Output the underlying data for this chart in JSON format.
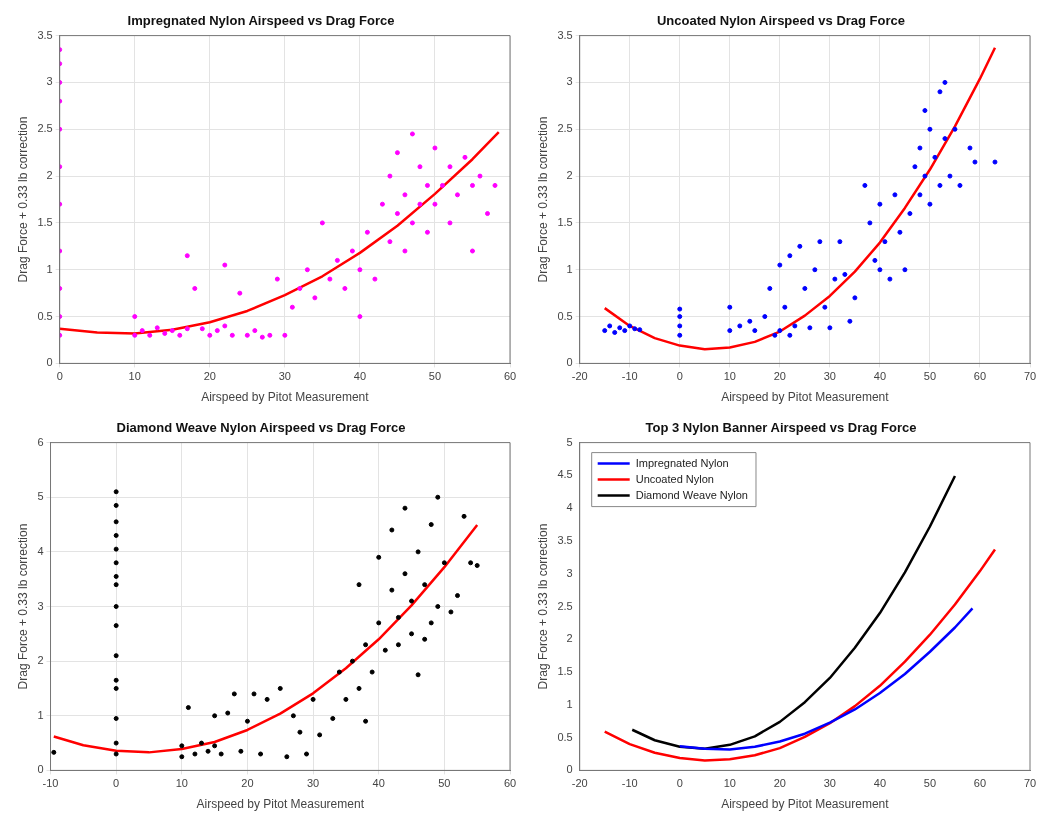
{
  "chart_data": [
    {
      "type": "scatter",
      "title": "Impregnated Nylon Airspeed vs Drag Force",
      "xlabel": "Airspeed by Pitot Measurement",
      "ylabel": "Drag Force + 0.33 lb correction",
      "xlim": [
        0,
        60
      ],
      "xticks": [
        0,
        10,
        20,
        30,
        40,
        50,
        60
      ],
      "ylim": [
        0,
        3.5
      ],
      "yticks": [
        0,
        0.5,
        1,
        1.5,
        2,
        2.5,
        3,
        3.5
      ],
      "grid": true,
      "legend": false,
      "series": [
        {
          "color": "#ff00ff",
          "marker": "circle",
          "x": [
            0,
            0,
            0,
            0,
            0,
            0,
            0,
            0,
            0,
            0,
            0,
            10,
            10,
            11,
            12,
            13,
            14,
            15,
            16,
            17,
            17,
            18,
            19,
            20,
            21,
            22,
            22,
            23,
            24,
            25,
            26,
            27,
            28,
            29,
            30,
            31,
            32,
            33,
            34,
            35,
            36,
            37,
            38,
            39,
            40,
            40,
            41,
            42,
            43,
            44,
            44,
            45,
            45,
            46,
            46,
            47,
            47,
            48,
            48,
            49,
            49,
            50,
            50,
            51,
            52,
            52,
            53,
            54,
            55,
            55,
            56,
            57,
            58
          ],
          "values": [
            0.3,
            0.5,
            0.8,
            1.2,
            1.7,
            2.1,
            2.5,
            2.8,
            3.0,
            3.2,
            3.35,
            0.3,
            0.5,
            0.35,
            0.3,
            0.38,
            0.32,
            0.35,
            0.3,
            0.37,
            1.15,
            0.8,
            0.37,
            0.3,
            0.35,
            0.4,
            1.05,
            0.3,
            0.75,
            0.3,
            0.35,
            0.28,
            0.3,
            0.9,
            0.3,
            0.6,
            0.8,
            1.0,
            0.7,
            1.5,
            0.9,
            1.1,
            0.8,
            1.2,
            1.0,
            0.5,
            1.4,
            0.9,
            1.7,
            1.3,
            2.0,
            1.6,
            2.25,
            1.8,
            1.2,
            1.5,
            2.45,
            2.1,
            1.7,
            1.9,
            1.4,
            2.3,
            1.7,
            1.9,
            1.5,
            2.1,
            1.8,
            2.2,
            1.2,
            1.9,
            2.0,
            1.6,
            1.9
          ]
        },
        {
          "type": "line",
          "color": "#ff0000",
          "marker": "none",
          "x": [
            0,
            5,
            10,
            15,
            20,
            25,
            30,
            35,
            40,
            45,
            50,
            55,
            58.5
          ],
          "values": [
            0.37,
            0.33,
            0.32,
            0.36,
            0.44,
            0.56,
            0.73,
            0.93,
            1.18,
            1.47,
            1.81,
            2.18,
            2.47
          ]
        }
      ]
    },
    {
      "type": "scatter",
      "title": "Uncoated Nylon Airspeed vs Drag Force",
      "xlabel": "Airspeed by Pitot Measurement",
      "ylabel": "Drag Force + 0.33 lb correction",
      "xlim": [
        -20,
        70
      ],
      "xticks": [
        -20,
        -10,
        0,
        10,
        20,
        30,
        40,
        50,
        60,
        70
      ],
      "ylim": [
        0,
        3.5
      ],
      "yticks": [
        0,
        0.5,
        1,
        1.5,
        2,
        2.5,
        3,
        3.5
      ],
      "grid": true,
      "legend": false,
      "series": [
        {
          "color": "#0000ff",
          "marker": "circle",
          "x": [
            -15,
            -14,
            -13,
            -12,
            -11,
            -10,
            -9,
            -8,
            0,
            0,
            0,
            0,
            10,
            10,
            12,
            14,
            15,
            17,
            18,
            19,
            20,
            20,
            21,
            22,
            22,
            23,
            24,
            25,
            26,
            27,
            28,
            29,
            30,
            31,
            32,
            33,
            34,
            35,
            37,
            38,
            39,
            40,
            40,
            41,
            42,
            43,
            44,
            45,
            46,
            47,
            48,
            48,
            49,
            49,
            50,
            50,
            51,
            52,
            52,
            53,
            53,
            54,
            55,
            56,
            58,
            59,
            63
          ],
          "values": [
            0.35,
            0.4,
            0.33,
            0.38,
            0.35,
            0.4,
            0.37,
            0.36,
            0.3,
            0.4,
            0.5,
            0.58,
            0.35,
            0.6,
            0.4,
            0.45,
            0.35,
            0.5,
            0.8,
            0.3,
            1.05,
            0.35,
            0.6,
            0.3,
            1.15,
            0.4,
            1.25,
            0.8,
            0.38,
            1.0,
            1.3,
            0.6,
            0.38,
            0.9,
            1.3,
            0.95,
            0.45,
            0.7,
            1.9,
            1.5,
            1.1,
            1.7,
            1.0,
            1.3,
            0.9,
            1.8,
            1.4,
            1.0,
            1.6,
            2.1,
            2.3,
            1.8,
            2.7,
            2.0,
            2.5,
            1.7,
            2.2,
            2.9,
            1.9,
            3.0,
            2.4,
            2.0,
            2.5,
            1.9,
            2.3,
            2.15,
            2.15
          ]
        },
        {
          "type": "line",
          "color": "#ff0000",
          "marker": "none",
          "x": [
            -15,
            -10,
            -5,
            0,
            5,
            10,
            15,
            20,
            25,
            30,
            35,
            40,
            45,
            50,
            55,
            60,
            63
          ],
          "values": [
            0.59,
            0.4,
            0.27,
            0.19,
            0.15,
            0.17,
            0.23,
            0.34,
            0.51,
            0.72,
            0.98,
            1.29,
            1.66,
            2.07,
            2.53,
            3.04,
            3.37
          ]
        }
      ]
    },
    {
      "type": "scatter",
      "title": "Diamond Weave Nylon Airspeed vs Drag Force",
      "xlabel": "Airspeed by Pitot Measurement",
      "ylabel": "Drag Force + 0.33 lb correction",
      "xlim": [
        -10,
        60
      ],
      "xticks": [
        -10,
        0,
        10,
        20,
        30,
        40,
        50,
        60
      ],
      "ylim": [
        0,
        6
      ],
      "yticks": [
        0,
        1,
        2,
        3,
        4,
        5,
        6
      ],
      "grid": true,
      "legend": false,
      "series": [
        {
          "color": "#000000",
          "marker": "circle",
          "x": [
            -9.5,
            0,
            0,
            0,
            0,
            0,
            0,
            0,
            0,
            0,
            0,
            0,
            0,
            0,
            0,
            0,
            0,
            10,
            10,
            11,
            12,
            13,
            14,
            15,
            15,
            16,
            17,
            18,
            19,
            20,
            21,
            22,
            23,
            25,
            26,
            27,
            28,
            29,
            30,
            31,
            33,
            34,
            35,
            36,
            37,
            37,
            38,
            38,
            39,
            40,
            40,
            41,
            42,
            42,
            43,
            43,
            44,
            44,
            45,
            45,
            46,
            46,
            47,
            47,
            48,
            48,
            49,
            49,
            50,
            51,
            52,
            53,
            54,
            55
          ],
          "values": [
            0.33,
            0.3,
            0.5,
            0.95,
            1.5,
            1.65,
            2.1,
            2.65,
            3.0,
            3.4,
            3.55,
            3.8,
            4.05,
            4.3,
            4.55,
            4.85,
            5.1,
            0.25,
            0.45,
            1.15,
            0.3,
            0.5,
            0.35,
            0.45,
            1.0,
            0.3,
            1.05,
            1.4,
            0.35,
            0.9,
            1.4,
            0.3,
            1.3,
            1.5,
            0.25,
            1.0,
            0.7,
            0.3,
            1.3,
            0.65,
            0.95,
            1.8,
            1.3,
            2.0,
            1.5,
            3.4,
            2.3,
            0.9,
            1.8,
            2.7,
            3.9,
            2.2,
            3.3,
            4.4,
            2.8,
            2.3,
            3.6,
            4.8,
            2.5,
            3.1,
            4.0,
            1.75,
            2.4,
            3.4,
            2.7,
            4.5,
            3.0,
            5.0,
            3.8,
            2.9,
            3.2,
            4.65,
            3.8,
            3.75
          ]
        },
        {
          "type": "line",
          "color": "#ff0000",
          "marker": "none",
          "x": [
            -9.5,
            -5,
            0,
            5,
            10,
            15,
            20,
            25,
            30,
            35,
            40,
            45,
            50,
            55
          ],
          "values": [
            0.62,
            0.46,
            0.36,
            0.33,
            0.39,
            0.52,
            0.74,
            1.04,
            1.41,
            1.87,
            2.4,
            3.02,
            3.72,
            4.49
          ]
        }
      ]
    },
    {
      "type": "line",
      "title": "Top 3 Nylon Banner Airspeed vs Drag Force",
      "xlabel": "Airspeed by Pitot Measurement",
      "ylabel": "Drag Force + 0.33 lb correction",
      "xlim": [
        -20,
        70
      ],
      "xticks": [
        -20,
        -10,
        0,
        10,
        20,
        30,
        40,
        50,
        60,
        70
      ],
      "ylim": [
        0,
        5
      ],
      "yticks": [
        0,
        0.5,
        1,
        1.5,
        2,
        2.5,
        3,
        3.5,
        4,
        4.5,
        5
      ],
      "grid": false,
      "legend": "top left",
      "series": [
        {
          "name": "Impregnated Nylon",
          "color": "#0000ff",
          "marker": "none",
          "x": [
            0,
            5,
            10,
            15,
            20,
            25,
            30,
            35,
            40,
            45,
            50,
            55,
            58.5
          ],
          "values": [
            0.37,
            0.33,
            0.32,
            0.36,
            0.44,
            0.56,
            0.73,
            0.93,
            1.18,
            1.47,
            1.81,
            2.18,
            2.47
          ]
        },
        {
          "name": "Uncoated Nylon",
          "color": "#ff0000",
          "marker": "none",
          "x": [
            -15,
            -10,
            -5,
            0,
            5,
            10,
            15,
            20,
            25,
            30,
            35,
            40,
            45,
            50,
            55,
            60,
            63
          ],
          "values": [
            0.59,
            0.4,
            0.27,
            0.19,
            0.15,
            0.17,
            0.23,
            0.34,
            0.51,
            0.72,
            0.98,
            1.29,
            1.66,
            2.07,
            2.53,
            3.04,
            3.37
          ]
        },
        {
          "name": "Diamond Weave Nylon",
          "color": "#000000",
          "marker": "none",
          "x": [
            -9.5,
            -5,
            0,
            5,
            10,
            15,
            20,
            25,
            30,
            35,
            40,
            45,
            50,
            55
          ],
          "values": [
            0.62,
            0.46,
            0.36,
            0.33,
            0.39,
            0.52,
            0.74,
            1.04,
            1.41,
            1.87,
            2.4,
            3.02,
            3.72,
            4.49
          ]
        }
      ]
    }
  ]
}
